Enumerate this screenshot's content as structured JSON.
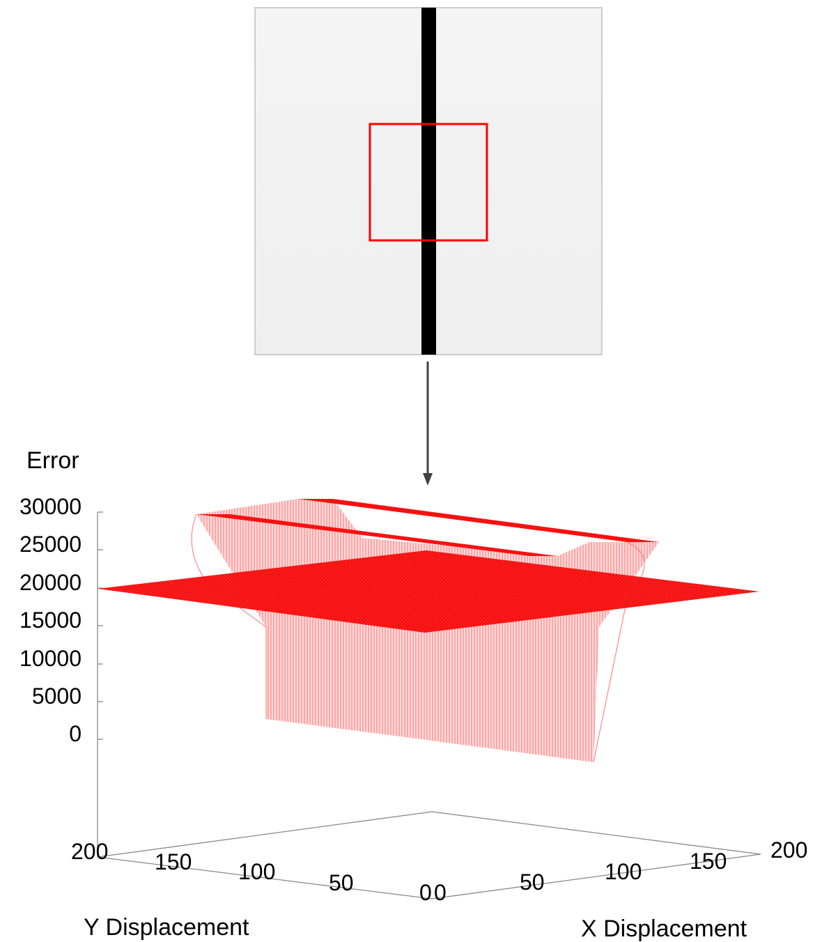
{
  "input_image": {
    "description_type": "synthetic-image",
    "background_color": "#f2f2f2",
    "stripe_color": "#000000",
    "window_color": "#ff0000"
  },
  "chart_data": {
    "type": "surface3d",
    "title": "",
    "zlabel": "Error",
    "xlabel": "X Displacement",
    "ylabel": "Y Displacement",
    "zlim": [
      0,
      30000
    ],
    "z_ticks": [
      "30000",
      "25000",
      "20000",
      "15000",
      "10000",
      "5000",
      "0"
    ],
    "x_ticks": [
      "0",
      "50",
      "100",
      "150",
      "200"
    ],
    "y_ticks": [
      "0",
      "50",
      "100",
      "150",
      "200"
    ],
    "xlim": [
      0,
      200
    ],
    "ylim": [
      0,
      200
    ],
    "series": [
      {
        "type": "error-surface",
        "color": "#ff0000",
        "description": "ridge-shaped error over x/y displacement",
        "plateau_error": 28000,
        "valley_error": 1000,
        "valley_x_range": [
          40,
          150
        ]
      },
      {
        "type": "plane",
        "color": "#ff0000",
        "error": 19000
      }
    ],
    "grid": false
  }
}
